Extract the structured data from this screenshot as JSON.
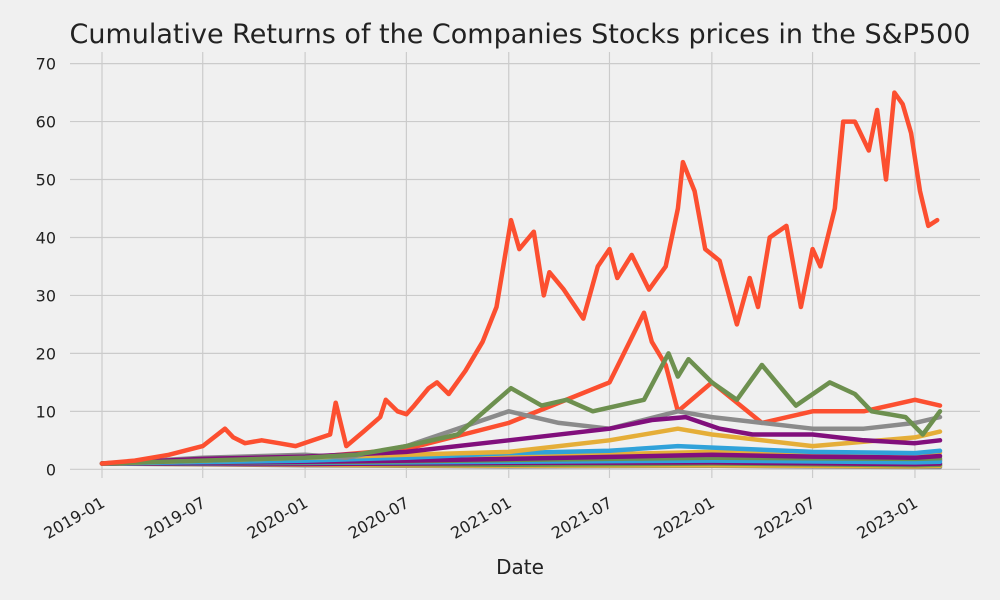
{
  "chart_data": {
    "type": "line",
    "title": "Cumulative Returns of the Companies Stocks prices in the S&P500",
    "xlabel": "Date",
    "ylabel": "",
    "x_range": [
      "2019-01-01",
      "2023-02-15"
    ],
    "ylim": [
      -1.5,
      72
    ],
    "grid": true,
    "legend": "none",
    "x_ticks": [
      "2019-01",
      "2019-07",
      "2020-01",
      "2020-07",
      "2021-01",
      "2021-07",
      "2022-01",
      "2022-07",
      "2023-01"
    ],
    "y_ticks": [
      0,
      10,
      20,
      30,
      40,
      50,
      60,
      70
    ],
    "series": [
      {
        "color": "#fc4f30",
        "dates": [
          "2019-01-01",
          "2019-03-01",
          "2019-05-01",
          "2019-07-01",
          "2019-08-10",
          "2019-08-25",
          "2019-09-15",
          "2019-10-15",
          "2019-11-15",
          "2019-12-15",
          "2020-01-15",
          "2020-02-15",
          "2020-02-25",
          "2020-03-15",
          "2020-04-15",
          "2020-05-15",
          "2020-05-25",
          "2020-06-15",
          "2020-07-01",
          "2020-07-15",
          "2020-08-10",
          "2020-08-25",
          "2020-09-15",
          "2020-10-15",
          "2020-11-15",
          "2020-12-10",
          "2021-01-05",
          "2021-01-20",
          "2021-02-15",
          "2021-03-05",
          "2021-03-15",
          "2021-04-10",
          "2021-05-15",
          "2021-06-10",
          "2021-07-01",
          "2021-07-15",
          "2021-08-10",
          "2021-09-10",
          "2021-10-10",
          "2021-11-01",
          "2021-11-10",
          "2021-12-01",
          "2021-12-20",
          "2022-01-15",
          "2022-02-15",
          "2022-03-10",
          "2022-03-25",
          "2022-04-15",
          "2022-05-15",
          "2022-06-10",
          "2022-07-01",
          "2022-07-15",
          "2022-08-10",
          "2022-08-25",
          "2022-09-15",
          "2022-10-10",
          "2022-10-25",
          "2022-11-10",
          "2022-11-25",
          "2022-12-10",
          "2022-12-25",
          "2023-01-10",
          "2023-01-25",
          "2023-02-10"
        ],
        "values": [
          1,
          1.5,
          2.5,
          4,
          7,
          5.5,
          4.5,
          5,
          4.5,
          4,
          5,
          6,
          11.5,
          4,
          6.5,
          9,
          12,
          10,
          9.5,
          11,
          14,
          15,
          13,
          17,
          22,
          28,
          43,
          38,
          41,
          30,
          34,
          31,
          26,
          35,
          38,
          33,
          37,
          31,
          35,
          45,
          53,
          48,
          38,
          36,
          25,
          33,
          28,
          40,
          42,
          28,
          38,
          35,
          45,
          60,
          60,
          55,
          62,
          50,
          65,
          63,
          58,
          48,
          42,
          43
        ]
      },
      {
        "color": "#6d904f",
        "dates": [
          "2019-01-01",
          "2019-07-01",
          "2020-01-01",
          "2020-04-01",
          "2020-07-01",
          "2020-10-01",
          "2021-01-05",
          "2021-03-01",
          "2021-04-15",
          "2021-06-01",
          "2021-09-01",
          "2021-10-15",
          "2021-11-01",
          "2021-11-20",
          "2022-01-01",
          "2022-02-15",
          "2022-04-01",
          "2022-06-01",
          "2022-08-01",
          "2022-09-15",
          "2022-10-15",
          "2022-12-15",
          "2023-01-15",
          "2023-02-15"
        ],
        "values": [
          1,
          1.5,
          2,
          2.5,
          4,
          6,
          14,
          11,
          12,
          10,
          12,
          20,
          16,
          19,
          15,
          12,
          18,
          11,
          15,
          13,
          10,
          9,
          6,
          10
        ]
      },
      {
        "color": "#810f7c",
        "dates": [
          "2019-01-01",
          "2019-07-01",
          "2020-01-01",
          "2020-07-01",
          "2021-01-01",
          "2021-07-01",
          "2021-09-15",
          "2021-11-15",
          "2022-01-15",
          "2022-03-15",
          "2022-07-01",
          "2022-10-01",
          "2023-01-01",
          "2023-02-15"
        ],
        "values": [
          1,
          1.8,
          2.2,
          3,
          5,
          7,
          8.5,
          9,
          7,
          6,
          6,
          5,
          4.5,
          5
        ]
      },
      {
        "color": "#8b8b8b",
        "dates": [
          "2019-01-01",
          "2019-07-01",
          "2020-01-01",
          "2020-03-15",
          "2020-07-01",
          "2020-10-01",
          "2021-01-01",
          "2021-04-01",
          "2021-07-01",
          "2021-11-01",
          "2022-01-01",
          "2022-04-01",
          "2022-07-01",
          "2022-10-01",
          "2023-01-01",
          "2023-02-15"
        ],
        "values": [
          1,
          2,
          2.5,
          2,
          4,
          7,
          10,
          8,
          7,
          10,
          9,
          8,
          7,
          7,
          8,
          9
        ]
      },
      {
        "color": "#e5ae38",
        "dates": [
          "2019-01-01",
          "2019-07-01",
          "2020-01-01",
          "2020-07-01",
          "2021-01-01",
          "2021-07-01",
          "2021-11-01",
          "2022-01-01",
          "2022-07-01",
          "2023-01-01",
          "2023-02-15"
        ],
        "values": [
          1,
          1.5,
          2,
          2.5,
          3,
          5,
          7,
          6,
          4,
          5.5,
          6.5
        ]
      },
      {
        "color": "#30a2da",
        "dates": [
          "2019-01-01",
          "2020-01-01",
          "2020-07-01",
          "2021-01-01",
          "2021-07-01",
          "2021-11-01",
          "2022-07-01",
          "2023-01-01",
          "2023-02-15"
        ],
        "values": [
          1,
          1.5,
          2,
          2.8,
          3.2,
          4,
          3,
          2.8,
          3.2
        ]
      },
      {
        "color": "#fc4f30",
        "dates": [
          "2019-01-01",
          "2020-01-01",
          "2020-07-01",
          "2021-01-01",
          "2021-07-01",
          "2021-09-01",
          "2021-09-15",
          "2021-10-10",
          "2021-11-01",
          "2022-01-01",
          "2022-04-01",
          "2022-07-01",
          "2022-10-01",
          "2023-01-01",
          "2023-02-15"
        ],
        "values": [
          1,
          2,
          3.5,
          8,
          15,
          27,
          22,
          18,
          10,
          15,
          8,
          10,
          10,
          12,
          11
        ]
      },
      {
        "color": "#810f7c",
        "dates": [
          "2019-01-01",
          "2020-01-01",
          "2020-07-01",
          "2021-01-01",
          "2022-01-01",
          "2022-07-01",
          "2023-01-01",
          "2023-02-15"
        ],
        "values": [
          1,
          1.3,
          1.5,
          1.8,
          2.5,
          2.2,
          2,
          2.3
        ]
      },
      {
        "color": "#6d904f",
        "dates": [
          "2019-01-01",
          "2020-01-01",
          "2021-01-01",
          "2022-01-01",
          "2023-01-01",
          "2023-02-15"
        ],
        "values": [
          1,
          1.2,
          1.6,
          2,
          1.8,
          1.9
        ]
      },
      {
        "color": "#e5ae38",
        "dates": [
          "2019-01-01",
          "2020-01-01",
          "2021-01-01",
          "2022-01-01",
          "2023-01-01",
          "2023-02-15"
        ],
        "values": [
          1,
          1.4,
          2.2,
          3,
          2.6,
          2.9
        ]
      },
      {
        "color": "#30a2da",
        "dates": [
          "2019-01-01",
          "2020-01-01",
          "2021-01-01",
          "2022-01-01",
          "2023-01-01",
          "2023-02-15"
        ],
        "values": [
          1,
          1.1,
          1.3,
          1.5,
          1.2,
          1.3
        ]
      },
      {
        "color": "#8b8b8b",
        "dates": [
          "2019-01-01",
          "2020-01-01",
          "2021-01-01",
          "2022-01-01",
          "2023-01-01",
          "2023-02-15"
        ],
        "values": [
          1,
          1.2,
          1.5,
          1.8,
          1.4,
          1.6
        ]
      },
      {
        "color": "#fc4f30",
        "dates": [
          "2019-01-01",
          "2020-01-01",
          "2021-01-01",
          "2022-01-01",
          "2023-01-01",
          "2023-02-15"
        ],
        "values": [
          1,
          1.1,
          1.4,
          1.7,
          1.5,
          1.6
        ]
      },
      {
        "color": "#810f7c",
        "dates": [
          "2019-01-01",
          "2020-01-01",
          "2021-01-01",
          "2022-01-01",
          "2023-01-01",
          "2023-02-15"
        ],
        "values": [
          1,
          0.9,
          1.1,
          1.2,
          0.9,
          1
        ]
      },
      {
        "color": "#6d904f",
        "dates": [
          "2019-01-01",
          "2020-01-01",
          "2021-01-01",
          "2022-01-01",
          "2023-01-01",
          "2023-02-15"
        ],
        "values": [
          1,
          1,
          0.8,
          1,
          0.7,
          0.8
        ]
      },
      {
        "color": "#e5ae38",
        "dates": [
          "2019-01-01",
          "2020-01-01",
          "2021-01-01",
          "2022-01-01",
          "2023-01-01",
          "2023-02-15"
        ],
        "values": [
          1,
          0.8,
          0.6,
          0.7,
          0.5,
          0.6
        ]
      },
      {
        "color": "#8b8b8b",
        "dates": [
          "2019-01-01",
          "2020-01-01",
          "2021-01-01",
          "2022-01-01",
          "2023-01-01",
          "2023-02-15"
        ],
        "values": [
          1,
          0.7,
          0.5,
          0.6,
          0.4,
          0.4
        ]
      },
      {
        "color": "#30a2da",
        "dates": [
          "2019-01-01",
          "2020-01-01",
          "2021-01-01",
          "2022-01-01",
          "2023-01-01",
          "2023-02-15"
        ],
        "values": [
          1,
          0.9,
          0.7,
          0.8,
          0.6,
          0.7
        ]
      }
    ]
  }
}
